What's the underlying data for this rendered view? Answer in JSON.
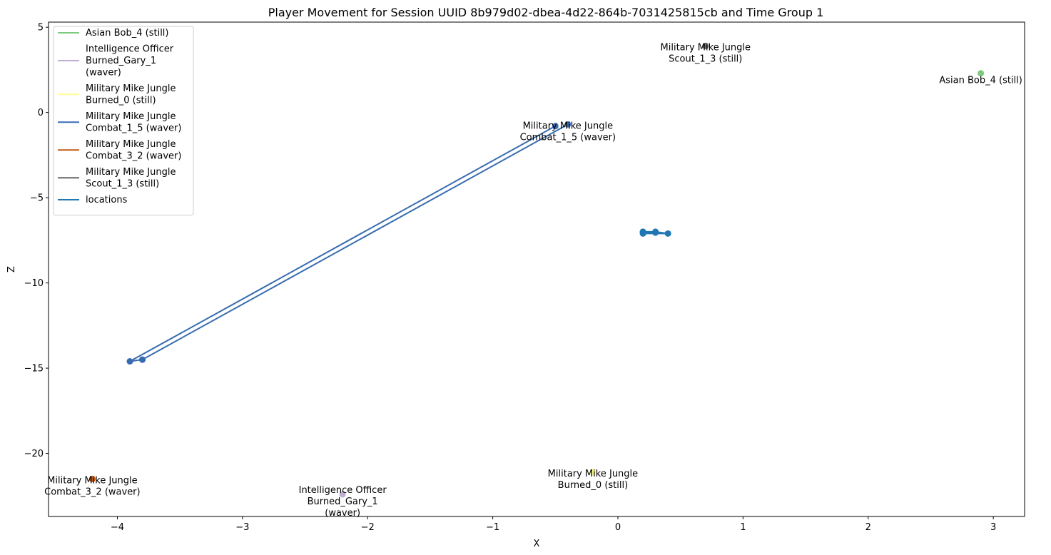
{
  "chart_data": {
    "type": "line",
    "title": "Player Movement for Session UUID 8b979d02-dbea-4d22-864b-7031425815cb and Time Group 1",
    "xlabel": "X",
    "ylabel": "Z",
    "xlim": [
      -4.55,
      3.25
    ],
    "ylim": [
      -23.7,
      5.3
    ],
    "xticks": [
      -4,
      -3,
      -2,
      -1,
      0,
      1,
      2,
      3
    ],
    "yticks": [
      5,
      0,
      -5,
      -10,
      -15,
      -20
    ],
    "xtick_labels": [
      "−4",
      "−3",
      "−2",
      "−1",
      "0",
      "1",
      "2",
      "3"
    ],
    "ytick_labels": [
      "5",
      "0",
      "−5",
      "−10",
      "−15",
      "−20"
    ],
    "grid": false,
    "legend_position": "upper-left",
    "series": [
      {
        "name": "Asian Bob_4 (still)",
        "label_lines": [
          "Asian Bob_4 (still)"
        ],
        "color": "#7fc97f",
        "points": [
          [
            2.9,
            2.3
          ]
        ]
      },
      {
        "name": "Intelligence Officer Burned_Gary_1 (waver)",
        "label_lines": [
          "Intelligence Officer",
          "Burned_Gary_1",
          "(waver)"
        ],
        "color": "#beaed4",
        "points": [
          [
            -2.2,
            -22.4
          ]
        ]
      },
      {
        "name": "Military Mike Jungle Burned_0 (still)",
        "label_lines": [
          "Military Mike Jungle",
          "Burned_0 (still)"
        ],
        "color": "#ffff99",
        "points": [
          [
            -0.2,
            -21.1
          ]
        ]
      },
      {
        "name": "Military Mike Jungle Combat_1_5 (waver)",
        "label_lines": [
          "Military Mike Jungle",
          "Combat_1_5 (waver)"
        ],
        "color": "#386cb0",
        "points": [
          [
            -0.5,
            -0.8
          ],
          [
            -3.9,
            -14.6
          ],
          [
            -3.8,
            -14.5
          ],
          [
            -0.4,
            -0.7
          ],
          [
            -3.8,
            -14.5
          ]
        ]
      },
      {
        "name": "Military Mike Jungle Combat_3_2 (waver)",
        "label_lines": [
          "Military Mike Jungle",
          "Combat_3_2 (waver)"
        ],
        "color": "#bf5b17",
        "points": [
          [
            -4.2,
            -21.5
          ]
        ]
      },
      {
        "name": "Military Mike Jungle Scout_1_3 (still)",
        "label_lines": [
          "Military Mike Jungle",
          "Scout_1_3 (still)"
        ],
        "color": "#666666",
        "points": [
          [
            0.7,
            3.9
          ]
        ]
      },
      {
        "name": "locations",
        "label_lines": [
          "locations"
        ],
        "color": "#1f77b4",
        "points": [
          [
            0.2,
            -7.0
          ],
          [
            0.3,
            -7.0
          ],
          [
            0.4,
            -7.1
          ],
          [
            0.2,
            -7.1
          ],
          [
            0.3,
            -7.05
          ],
          [
            0.2,
            -7.0
          ]
        ]
      }
    ],
    "annotations": [
      {
        "lines": [
          "Asian Bob_4 (still)"
        ],
        "x": 2.9,
        "y": 2.3,
        "series": 0
      },
      {
        "lines": [
          "Intelligence Officer",
          "Burned_Gary_1",
          "(waver)"
        ],
        "x": -2.2,
        "y": -22.4,
        "series": 1
      },
      {
        "lines": [
          "Military Mike Jungle",
          "Burned_0 (still)"
        ],
        "x": -0.2,
        "y": -21.1,
        "series": 2
      },
      {
        "lines": [
          "Military Mike Jungle",
          "Combat_1_5 (waver)"
        ],
        "x": -0.4,
        "y": -0.7,
        "series": 3
      },
      {
        "lines": [
          "Military Mike Jungle",
          "Combat_3_2 (waver)"
        ],
        "x": -4.2,
        "y": -21.5,
        "series": 4
      },
      {
        "lines": [
          "Military Mike Jungle",
          "Scout_1_3 (still)"
        ],
        "x": 0.7,
        "y": 3.9,
        "series": 5
      }
    ]
  }
}
